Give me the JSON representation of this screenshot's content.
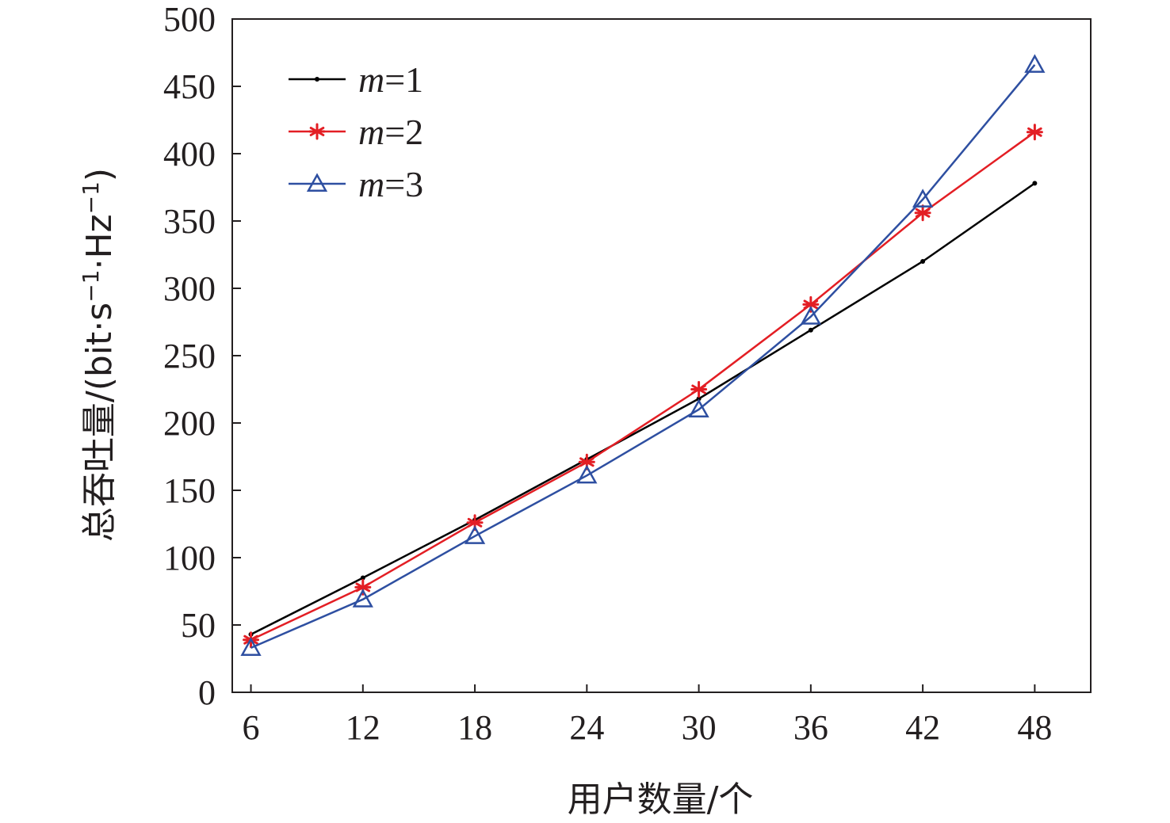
{
  "chart_data": {
    "type": "line",
    "xlabel": "用户数量/个",
    "ylabel": {
      "prefix": "总吞吐量/(bit·s",
      "sup1": "−1",
      "mid": "·Hz",
      "sup2": "−1",
      "suffix": ")"
    },
    "x": [
      6,
      12,
      18,
      24,
      30,
      36,
      42,
      48
    ],
    "x_tick_labels": [
      "6",
      "12",
      "18",
      "24",
      "30",
      "36",
      "42",
      "48"
    ],
    "y_ticks": [
      0,
      50,
      100,
      150,
      200,
      250,
      300,
      350,
      400,
      450,
      500
    ],
    "y_tick_labels": [
      "0",
      "50",
      "100",
      "150",
      "200",
      "250",
      "300",
      "350",
      "400",
      "450",
      "500"
    ],
    "xlim": [
      5,
      51
    ],
    "ylim": [
      0,
      500
    ],
    "grid": false,
    "legend_position": "top-left",
    "series": [
      {
        "name": "m=1",
        "label_var": "m",
        "label_val": "=1",
        "color": "#000000",
        "marker": "dot",
        "values": [
          43,
          85,
          128,
          173,
          218,
          269,
          320,
          378
        ]
      },
      {
        "name": "m=2",
        "label_var": "m",
        "label_val": "=2",
        "color": "#e31e24",
        "marker": "asterisk",
        "values": [
          39,
          78,
          126,
          171,
          225,
          288,
          356,
          416
        ]
      },
      {
        "name": "m=3",
        "label_var": "m",
        "label_val": "=3",
        "color": "#2e4fa1",
        "marker": "triangle",
        "values": [
          33,
          69,
          116,
          161,
          210,
          279,
          366,
          466
        ]
      }
    ]
  }
}
